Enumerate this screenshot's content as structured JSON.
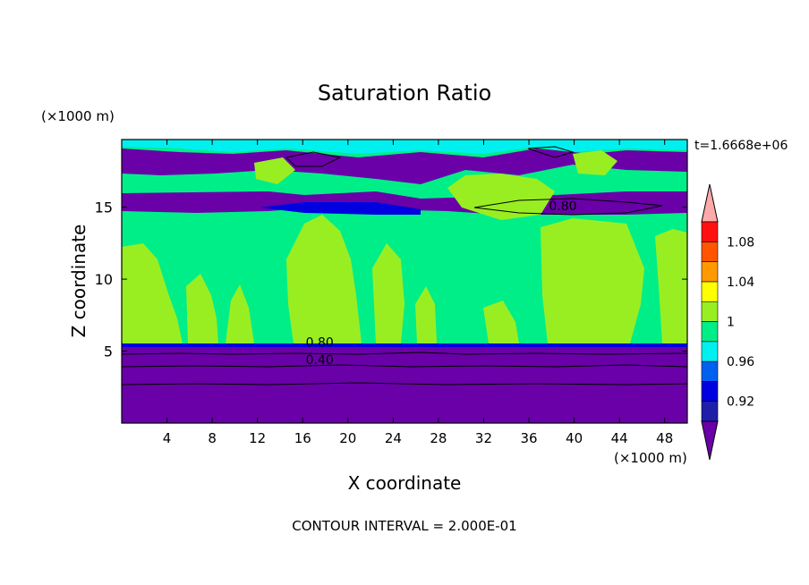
{
  "chart_data": {
    "type": "heatmap",
    "title": "Saturation Ratio",
    "xlabel": "X coordinate",
    "ylabel": "Z coordinate",
    "x_unit": "(×1000 m)",
    "y_unit": "(×1000 m)",
    "time_label": "t=1.6668e+06",
    "footer": "CONTOUR INTERVAL = 2.000E-01",
    "xlim": [
      0,
      50
    ],
    "ylim": [
      0,
      19.7
    ],
    "x_ticks": [
      4,
      8,
      12,
      16,
      20,
      24,
      28,
      32,
      36,
      40,
      44,
      48
    ],
    "y_ticks": [
      5,
      10,
      15
    ],
    "x_tick_labels": [
      "4",
      "8",
      "12",
      "16",
      "20",
      "24",
      "28",
      "32",
      "36",
      "40",
      "44",
      "48"
    ],
    "y_tick_labels": [
      "5",
      "10",
      "15"
    ],
    "contour_labels": [
      {
        "text": "0.80",
        "x": 17.5,
        "z": 5.3
      },
      {
        "text": "0.40",
        "x": 17.5,
        "z": 4.1
      },
      {
        "text": "0.80",
        "x": 39.0,
        "z": 14.8
      }
    ],
    "colorbar": {
      "levels": [
        0.92,
        0.94,
        0.96,
        0.98,
        1.0,
        1.02,
        1.04,
        1.06,
        1.08,
        1.1
      ],
      "colors": [
        "#6a00a8",
        "#1e1ea8",
        "#0000e0",
        "#0060f0",
        "#00f0f0",
        "#00ee88",
        "#99ee22",
        "#ffff00",
        "#ff9900",
        "#ff5500",
        "#ff1111",
        "#ffaaaa"
      ],
      "labels": [
        "0.92",
        "0.96",
        "1",
        "1.04",
        "1.08"
      ]
    },
    "regions": [
      {
        "zmin": 0,
        "zmax": 5.5,
        "value": "< 0.92",
        "color": "#6a00a8"
      },
      {
        "zmin": 5.5,
        "zmax": 14.5,
        "value": "0.98-1.02",
        "color": "#00ee88"
      },
      {
        "zmin": 14.5,
        "zmax": 16.2,
        "value": "< 0.92",
        "color": "#6a00a8"
      },
      {
        "zmin": 16.2,
        "zmax": 19.7,
        "value": "0.98-1.02",
        "color": "#00ee88"
      }
    ]
  }
}
